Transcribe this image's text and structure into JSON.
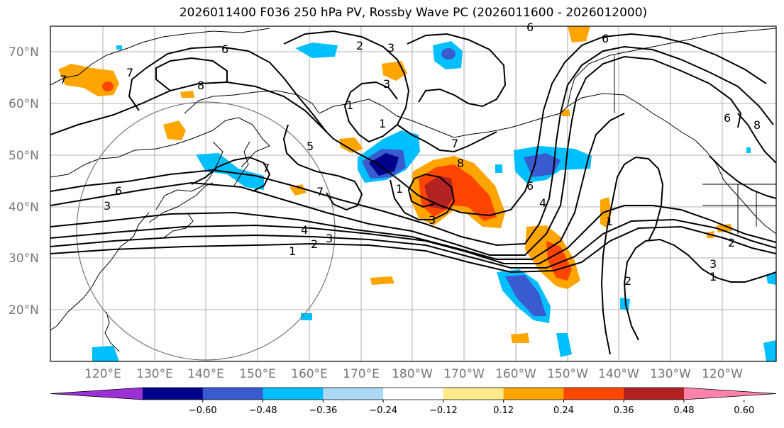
{
  "title": "2026011400 F036 250 hPa PV, Rossby Wave PC (2026011600 - 2026012000)",
  "lat_labels": [
    "70°N",
    "60°N",
    "50°N",
    "40°N",
    "30°N",
    "20°N"
  ],
  "lon_labels": [
    "120°E",
    "130°E",
    "140°E",
    "150°E",
    "160°E",
    "170°E",
    "180°W",
    "170°W",
    "160°W",
    "150°W",
    "140°W",
    "130°W",
    "120°W"
  ],
  "colorbar": {
    "colors": [
      "#9b30d6",
      "#00008b",
      "#3a5bd0",
      "#00bfff",
      "#add8f5",
      "#ffffff",
      "#ffe98a",
      "#ffa500",
      "#ff4500",
      "#b22222",
      "#ff82ab"
    ],
    "ticks": [
      "−0.60",
      "−0.48",
      "−0.36",
      "−0.24",
      "−0.12",
      "0.12",
      "0.24",
      "0.36",
      "0.48",
      "0.60"
    ]
  },
  "contour_labels": [
    "1",
    "2",
    "3",
    "4",
    "6",
    "7",
    "8",
    "6",
    "3",
    "1",
    "2",
    "3",
    "6",
    "7",
    "8",
    "7",
    "6",
    "5",
    "3",
    "2",
    "1",
    "3",
    "1",
    "2",
    "3",
    "6",
    "8",
    "7",
    "4",
    "1",
    "6",
    "7",
    "1"
  ]
}
